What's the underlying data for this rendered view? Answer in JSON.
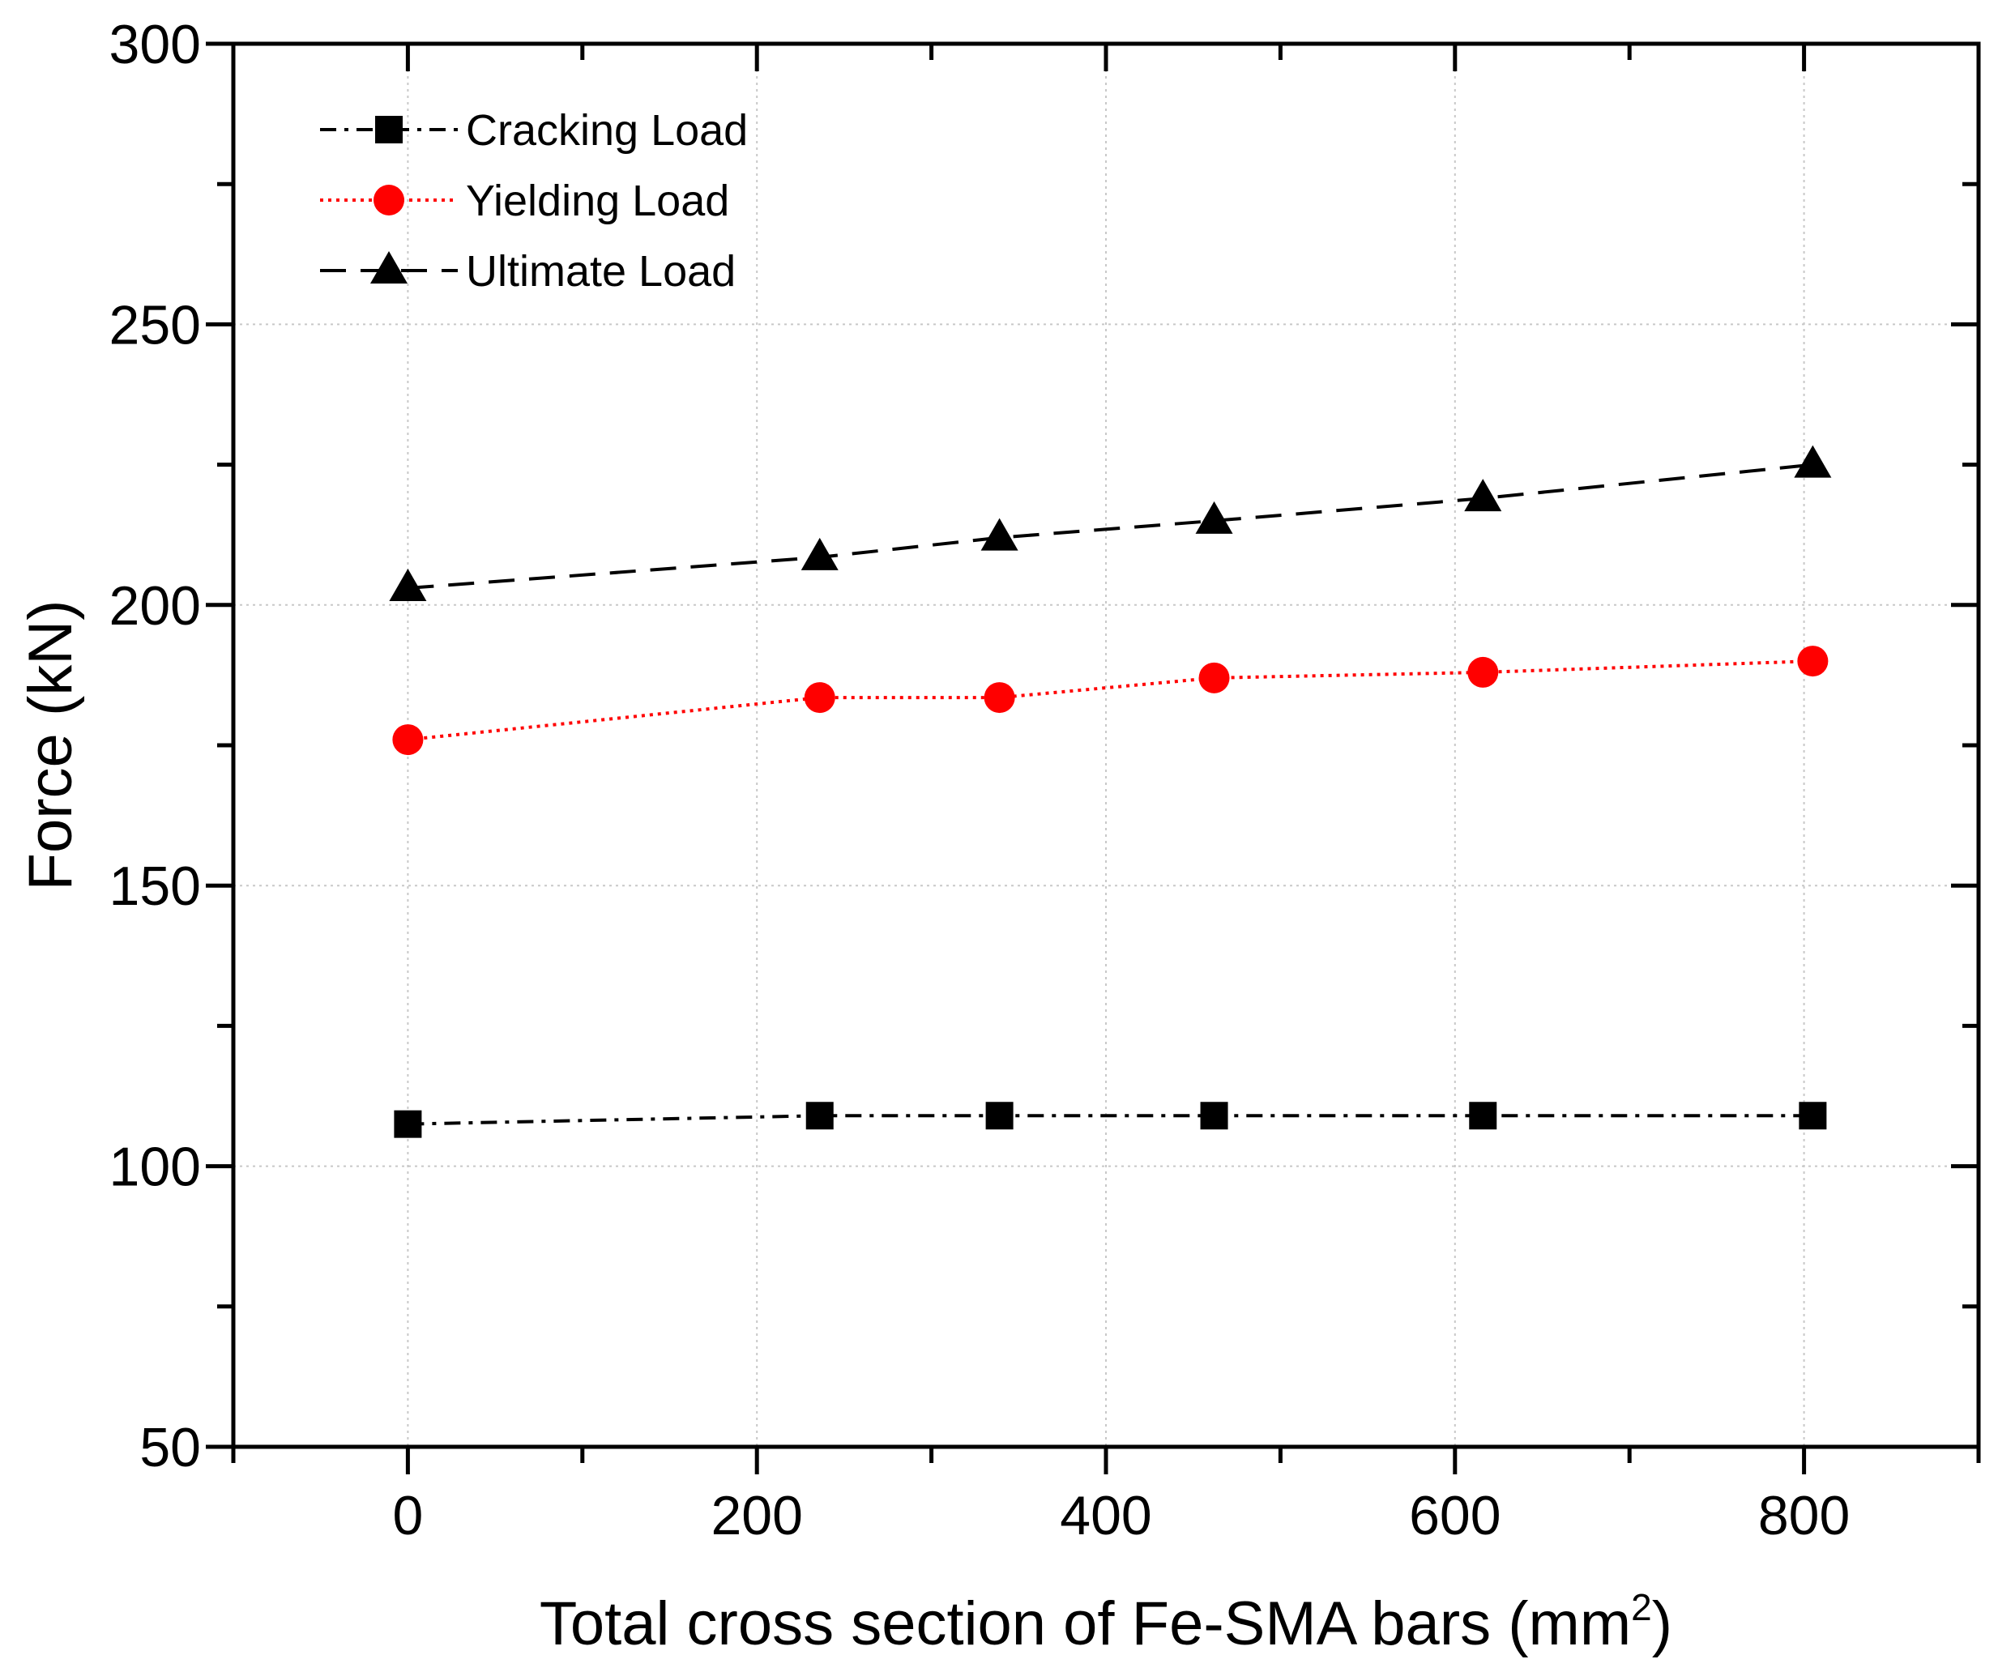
{
  "chart_data": {
    "type": "line",
    "title": "",
    "xlabel": "Total cross section of Fe-SMA bars (mm",
    "xlabel_superscript": "2",
    "xlabel_suffix": ")",
    "ylabel": "Force (kN)",
    "xlim": [
      -100,
      900
    ],
    "ylim": [
      50,
      300
    ],
    "x_ticks": [
      0,
      200,
      400,
      600,
      800
    ],
    "y_ticks": [
      50,
      100,
      150,
      200,
      250,
      300
    ],
    "grid": true,
    "legend_position": "top-left",
    "x": [
      0,
      236,
      339,
      462,
      616,
      805
    ],
    "series": [
      {
        "name": "Cracking Load",
        "values": [
          107.5,
          109,
          109,
          109,
          109,
          109
        ],
        "color": "#000000",
        "marker": "square",
        "line_style": "dash-dot"
      },
      {
        "name": "Yielding Load",
        "values": [
          176,
          183.5,
          183.5,
          187,
          188,
          190
        ],
        "color": "#ff0000",
        "marker": "circle",
        "line_style": "dotted"
      },
      {
        "name": "Ultimate Load",
        "values": [
          203,
          208.5,
          212,
          215,
          219,
          225
        ],
        "color": "#000000",
        "marker": "triangle",
        "line_style": "dashed"
      }
    ]
  }
}
